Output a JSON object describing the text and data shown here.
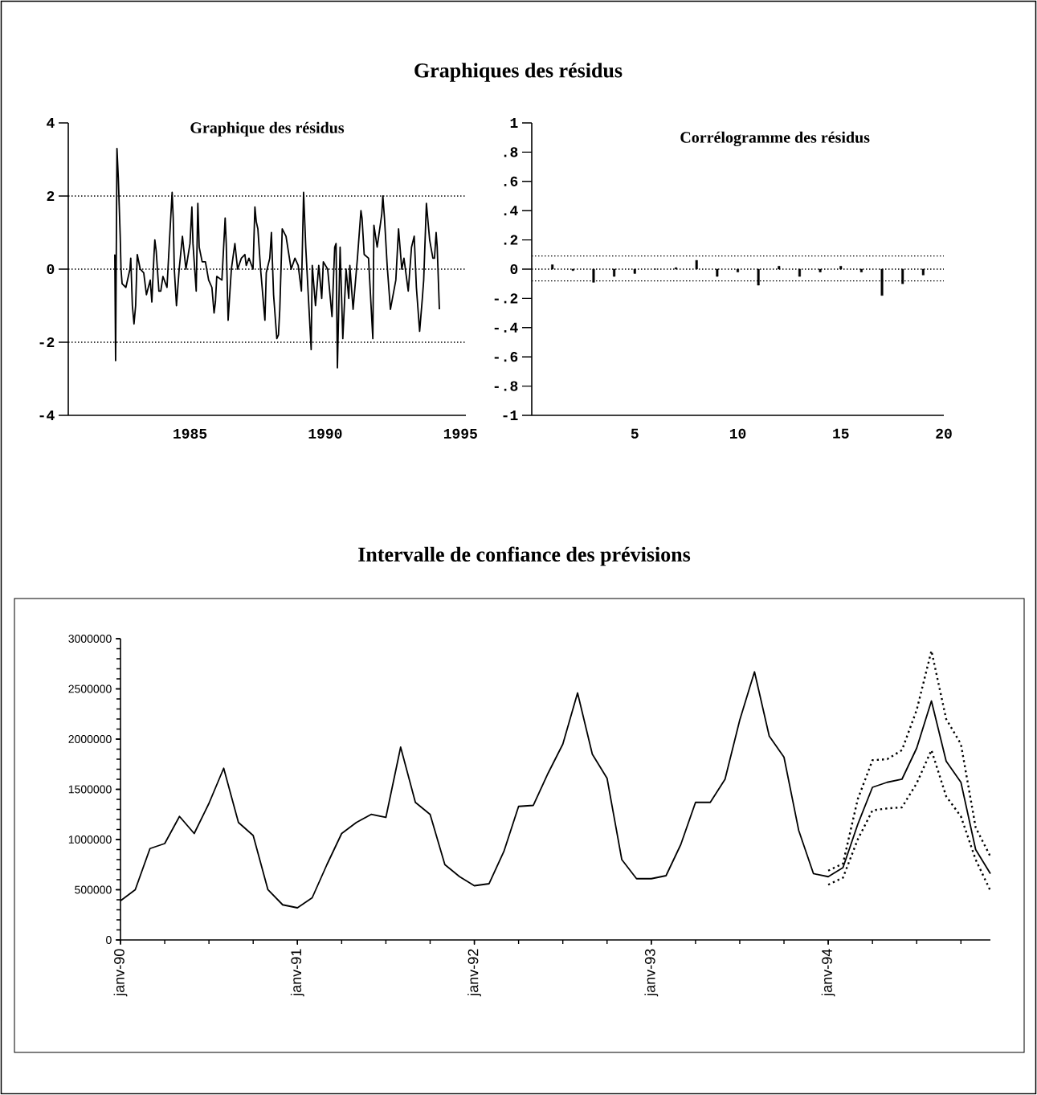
{
  "chart_data": [
    {
      "type": "line",
      "title": "Graphique des résidus",
      "annotations": [
        "Graphiques des résidus"
      ],
      "color": "#000000",
      "x": [
        1982.22,
        1982.25,
        1982.3,
        1982.35,
        1982.42,
        1982.45,
        1982.49,
        1982.63,
        1982.78,
        1982.81,
        1982.87,
        1982.93,
        1982.99,
        1983.05,
        1983.16,
        1983.29,
        1983.39,
        1983.53,
        1983.59,
        1983.67,
        1983.7,
        1983.75,
        1983.85,
        1983.92,
        1984.0,
        1984.15,
        1984.25,
        1984.34,
        1984.38,
        1984.42,
        1984.5,
        1984.6,
        1984.72,
        1984.85,
        1985.0,
        1985.07,
        1985.11,
        1985.23,
        1985.29,
        1985.34,
        1985.45,
        1985.57,
        1985.69,
        1985.81,
        1985.89,
        1985.94,
        1985.99,
        1986.18,
        1986.3,
        1986.34,
        1986.41,
        1986.46,
        1986.53,
        1986.66,
        1986.76,
        1986.9,
        1987.03,
        1987.08,
        1987.18,
        1987.33,
        1987.4,
        1987.45,
        1987.51,
        1987.61,
        1987.77,
        1987.82,
        1987.95,
        1988.01,
        1988.09,
        1988.21,
        1988.27,
        1988.32,
        1988.41,
        1988.55,
        1988.74,
        1988.88,
        1989.0,
        1989.12,
        1989.2,
        1989.28,
        1989.38,
        1989.48,
        1989.52,
        1989.64,
        1989.76,
        1989.87,
        1989.93,
        1990.09,
        1990.25,
        1990.35,
        1990.4,
        1990.45,
        1990.55,
        1990.65,
        1990.77,
        1990.87,
        1990.91,
        1991.03,
        1991.19,
        1991.32,
        1991.36,
        1991.44,
        1991.6,
        1991.76,
        1991.8,
        1991.92,
        1992.09,
        1992.13,
        1992.19,
        1992.29,
        1992.41,
        1992.61,
        1992.71,
        1992.83,
        1992.91,
        1993.07,
        1993.19,
        1993.29,
        1993.37,
        1993.49,
        1993.59,
        1993.64,
        1993.74,
        1993.86,
        1993.98,
        1994.04,
        1994.1,
        1994.14,
        1994.22
      ],
      "values": [
        0.4,
        -2.5,
        3.3,
        2.5,
        0.9,
        0.0,
        -0.4,
        -0.5,
        0.0,
        0.3,
        -1.0,
        -1.5,
        -1.0,
        0.4,
        0.0,
        -0.1,
        -0.7,
        -0.3,
        -0.9,
        0.4,
        0.8,
        0.5,
        -0.6,
        -0.6,
        -0.2,
        -0.5,
        0.9,
        2.1,
        1.4,
        0.0,
        -1.0,
        0.0,
        0.9,
        0.0,
        0.7,
        1.7,
        0.7,
        -0.6,
        1.8,
        0.6,
        0.2,
        0.2,
        -0.3,
        -0.5,
        -1.2,
        -0.9,
        -0.2,
        -0.3,
        1.4,
        0.7,
        -1.4,
        -0.8,
        0.0,
        0.7,
        0.0,
        0.3,
        0.4,
        0.1,
        0.3,
        0.0,
        1.7,
        1.3,
        1.1,
        0.0,
        -1.4,
        -0.1,
        0.3,
        1.0,
        -0.7,
        -1.9,
        -1.8,
        -1.1,
        1.1,
        0.9,
        0.0,
        0.3,
        0.1,
        -0.6,
        2.1,
        0.6,
        -0.8,
        -2.2,
        0.1,
        -1.0,
        0.1,
        -0.8,
        0.2,
        0.0,
        -1.3,
        0.6,
        0.7,
        -2.7,
        0.6,
        -1.9,
        0.0,
        -0.8,
        0.1,
        -1.1,
        0.3,
        1.6,
        1.4,
        0.4,
        0.3,
        -1.9,
        1.2,
        0.6,
        1.5,
        2.0,
        1.4,
        0.1,
        -1.1,
        -0.3,
        1.1,
        0.0,
        0.3,
        -0.6,
        0.6,
        0.9,
        -0.5,
        -1.7,
        -0.8,
        -0.3,
        1.8,
        0.8,
        0.3,
        0.3,
        1.0,
        0.6,
        -1.1
      ],
      "xlim": [
        1980.5,
        1995.2
      ],
      "xticks": [
        1985,
        1990,
        1995
      ],
      "ylim": [
        -4,
        4
      ],
      "yticks": [
        -4,
        -2,
        0,
        2,
        4
      ],
      "ref_lines": [
        {
          "axis": "y",
          "value": 2,
          "line_style": "dotted"
        },
        {
          "axis": "y",
          "value": 0,
          "line_style": "dotted"
        },
        {
          "axis": "y",
          "value": -2,
          "line_style": "dotted"
        }
      ]
    },
    {
      "type": "bar",
      "title": "Corrélogramme des résidus",
      "color": "#000000",
      "x": [
        1,
        2,
        3,
        4,
        5,
        6,
        7,
        8,
        9,
        10,
        11,
        12,
        13,
        14,
        15,
        16,
        17,
        18,
        19
      ],
      "values": [
        0.03,
        -0.01,
        -0.09,
        -0.05,
        -0.03,
        0.0,
        0.01,
        0.06,
        -0.05,
        -0.02,
        -0.11,
        0.02,
        -0.05,
        -0.02,
        0.02,
        -0.02,
        -0.18,
        -0.1,
        -0.04
      ],
      "xlim": [
        0,
        20
      ],
      "xticks": [
        5,
        10,
        15,
        20
      ],
      "ylim": [
        -1,
        1
      ],
      "yticks": [
        -1,
        {
          "value": -0.8,
          "label": "-.8"
        },
        {
          "value": -0.6,
          "label": "-.6"
        },
        {
          "value": -0.4,
          "label": "-.4"
        },
        {
          "value": -0.2,
          "label": "-.2"
        },
        0,
        {
          "value": 0.2,
          "label": ".2"
        },
        {
          "value": 0.4,
          "label": ".4"
        },
        {
          "value": 0.6,
          "label": ".6"
        },
        {
          "value": 0.8,
          "label": ".8"
        },
        1
      ],
      "ref_lines": [
        {
          "axis": "y",
          "value": 0.09,
          "line_style": "dotted"
        },
        {
          "axis": "y",
          "value": 0,
          "line_style": "dotted"
        },
        {
          "axis": "y",
          "value": -0.08,
          "line_style": "dotted"
        }
      ]
    },
    {
      "type": "line",
      "title": "Intervalle de confiance des prévisions",
      "categories": [
        "janv-90",
        null,
        null,
        null,
        null,
        null,
        null,
        null,
        null,
        null,
        null,
        null,
        "janv-91",
        null,
        null,
        null,
        null,
        null,
        null,
        null,
        null,
        null,
        null,
        null,
        "janv-92",
        null,
        null,
        null,
        null,
        null,
        null,
        null,
        null,
        null,
        null,
        null,
        "janv-93",
        null,
        null,
        null,
        null,
        null,
        null,
        null,
        null,
        null,
        null,
        null,
        "janv-94",
        null,
        null,
        null,
        null,
        null,
        null,
        null,
        null,
        null,
        null,
        null
      ],
      "series": [
        {
          "color": "#000000",
          "values": [
            390000,
            500000,
            910000,
            960000,
            1230000,
            1060000,
            1360000,
            1710000,
            1170000,
            1040000,
            500000,
            350000,
            320000,
            420000,
            750000,
            1060000,
            1170000,
            1250000,
            1220000,
            1920000,
            1370000,
            1250000,
            750000,
            630000,
            540000,
            560000,
            880000,
            1330000,
            1340000,
            1660000,
            1950000,
            2460000,
            1850000,
            1610000,
            800000,
            610000,
            610000,
            640000,
            950000,
            1370000,
            1370000,
            1600000,
            2190000,
            2670000,
            2030000,
            1820000,
            1090000,
            660000,
            630000,
            720000,
            1150000,
            1520000,
            1570000,
            1600000,
            1910000,
            2380000,
            1780000,
            1570000,
            900000,
            660000
          ]
        },
        {
          "color": "#000000",
          "line_style": "dotted",
          "values": [
            null,
            null,
            null,
            null,
            null,
            null,
            null,
            null,
            null,
            null,
            null,
            null,
            null,
            null,
            null,
            null,
            null,
            null,
            null,
            null,
            null,
            null,
            null,
            null,
            null,
            null,
            null,
            null,
            null,
            null,
            null,
            null,
            null,
            null,
            null,
            null,
            null,
            null,
            null,
            null,
            null,
            null,
            null,
            null,
            null,
            null,
            null,
            null,
            690000,
            760000,
            1400000,
            1790000,
            1800000,
            1890000,
            2290000,
            2880000,
            2200000,
            1950000,
            1120000,
            830000
          ]
        },
        {
          "color": "#000000",
          "line_style": "dotted",
          "values": [
            null,
            null,
            null,
            null,
            null,
            null,
            null,
            null,
            null,
            null,
            null,
            null,
            null,
            null,
            null,
            null,
            null,
            null,
            null,
            null,
            null,
            null,
            null,
            null,
            null,
            null,
            null,
            null,
            null,
            null,
            null,
            null,
            null,
            null,
            null,
            null,
            null,
            null,
            null,
            null,
            null,
            null,
            null,
            null,
            null,
            null,
            null,
            null,
            550000,
            620000,
            1000000,
            1290000,
            1310000,
            1320000,
            1560000,
            1890000,
            1430000,
            1230000,
            800000,
            490000
          ]
        }
      ],
      "ylim": [
        0,
        3000000
      ],
      "yticks": [
        0,
        500000,
        1000000,
        1500000,
        2000000,
        2500000,
        3000000
      ]
    }
  ]
}
